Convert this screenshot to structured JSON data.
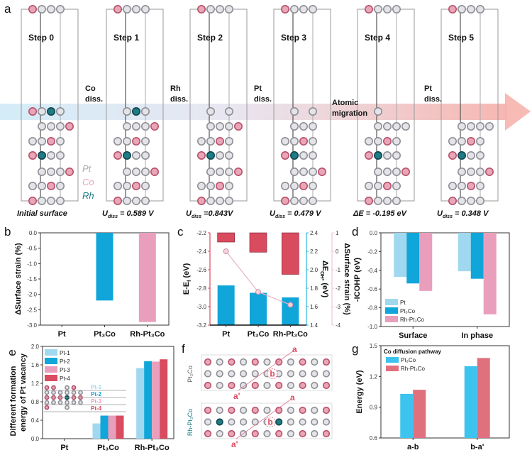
{
  "panel_labels": {
    "a": "a",
    "b": "b",
    "c": "c",
    "d": "d",
    "e": "e",
    "f": "f",
    "g": "g"
  },
  "panel_a": {
    "steps": [
      {
        "label": "Step 0",
        "caption": {
          "text": "Initial surface"
        },
        "rows": [
          "CPPP_",
          "CPRP_",
          "_PPPC",
          "PPCP_",
          "CRPP_",
          "_PPPC",
          "PPCP_",
          "CPPP_"
        ]
      },
      {
        "label": "Step 1",
        "caption": {
          "main": "U",
          "sub": "diss",
          "value": " = 0.589 V"
        },
        "rows": [
          "CPPP_",
          "_PRP_",
          "_PPPC",
          "PPCP_",
          "CRPP_",
          "_PPPC",
          "PPCP_",
          "CPPP_"
        ]
      },
      {
        "label": "Step 2",
        "caption": {
          "main": "U",
          "sub": "diss",
          "value": " =0.843V"
        },
        "rows": [
          "CPPP_",
          "_P_P_",
          "_PPPC",
          "PPCP_",
          "CRPP_",
          "_PPPC",
          "PPCP_",
          "CPPP_"
        ]
      },
      {
        "label": "Step 3",
        "caption": {
          "main": "U",
          "sub": "diss",
          "value": " = 0.479 V"
        },
        "rows": [
          "CPPP_",
          "_P_P_",
          "_PPP_",
          "PPCP_",
          "CRPP_",
          "_PPPC",
          "PPCP_",
          "CPPP_"
        ]
      },
      {
        "label": "Step 4",
        "caption": {
          "main": "ΔE",
          "sub": "",
          "value": " = -0.195 eV"
        },
        "rows": [
          "CPPP_",
          "_P___",
          "_PPPP",
          "PPCP_",
          "CRPP_",
          "_PPPC",
          "PPCP_",
          "CPPP_"
        ]
      },
      {
        "label": "Step 5",
        "caption": {
          "main": "U",
          "sub": "diss",
          "value": " = 0.348 V"
        },
        "rows": [
          "CPPP_",
          "_____",
          "_PPPP",
          "PPCP_",
          "CRPP_",
          "_PPPC",
          "PPCP_",
          "CPPP_"
        ]
      }
    ],
    "transitions": [
      [
        "Co",
        "diss."
      ],
      [
        "Rh",
        "diss."
      ],
      [
        "Pt",
        "diss."
      ],
      [
        "Atomic",
        "migration"
      ],
      [
        "Pt",
        "diss."
      ]
    ],
    "legend": [
      "Pt",
      "Co",
      "Rh"
    ]
  },
  "colors": {
    "Pt_fill": "#e4e4e8",
    "Pt_ring": "#8e8e96",
    "Co_fill": "#e8a6b6",
    "Co_ring": "#b8506c",
    "Rh_fill": "#1f7c86",
    "Rh_ring": "#10454b",
    "light_blue": "#9fd8ef",
    "blue": "#10a6d9",
    "pink": "#e99fbc",
    "red": "#d94b5f",
    "strain_line": "#e8b3c6"
  },
  "chart_data": [
    {
      "id": "b",
      "type": "bar",
      "title": "",
      "xlabel": "",
      "ylabel": "ΔSurface strain (%)",
      "categories": [
        "Pt",
        "Pt₃Co",
        "Rh-Pt₃Co"
      ],
      "values": [
        0,
        -2.2,
        -2.9
      ],
      "ylim": [
        -3.0,
        0.0
      ],
      "yticks": [
        "0.0",
        "-0.5",
        "-1.0",
        "-1.5",
        "-2.0",
        "-2.5",
        "-3.0"
      ],
      "bar_colors": [
        "#10a6d9",
        "#10a6d9",
        "#e99fbc"
      ]
    },
    {
      "id": "c",
      "type": "bar",
      "categories": [
        "Pt",
        "Pt₃Co",
        "Rh-Pt₃Co"
      ],
      "series": [
        {
          "name": "E-Ef",
          "axis": "left",
          "values": [
            -2.3,
            -2.41,
            -2.65
          ],
          "color": "#d94b5f"
        },
        {
          "name": "ΔE_OH*",
          "axis": "right",
          "values": [
            1.83,
            1.75,
            1.7
          ],
          "color": "#10a6d9"
        },
        {
          "name": "ΔSurface strain",
          "axis": "right2",
          "type": "line",
          "values": [
            0,
            -2.2,
            -2.9
          ],
          "color": "#e8b3c6"
        }
      ],
      "ylabel_left": {
        "main": "E-E",
        "sub": "f",
        "suffix": " (eV)"
      },
      "ylabel_right": {
        "main": "ΔE",
        "sub": "OH*",
        "suffix": " (eV)"
      },
      "ylabel_right2": "ΔSurface strain (%)",
      "ylim_left": [
        -3.2,
        -2.2
      ],
      "yticks_left": [
        "-2.2",
        "-2.4",
        "-2.6",
        "-2.8",
        "-3.0",
        "-3.2"
      ],
      "ylim_right": [
        1.4,
        2.4
      ],
      "yticks_right": [
        "2.4",
        "2.2",
        "2.0",
        "1.8",
        "1.6",
        "1.4"
      ],
      "ylim_right2": [
        -4,
        1
      ],
      "yticks_right2": [
        "1",
        "0",
        "-1",
        "-2",
        "-3",
        "-4"
      ]
    },
    {
      "id": "d",
      "type": "bar",
      "ylabel": "-ICOHP (eV)",
      "categories": [
        "Surface",
        "In phase"
      ],
      "series": [
        {
          "name": "Pt",
          "values": [
            -0.47,
            -0.41
          ],
          "color": "#9fd8ef"
        },
        {
          "name": "Pt₃Co",
          "values": [
            -0.54,
            -0.49
          ],
          "color": "#10a6d9"
        },
        {
          "name": "Rh-Pt₃Co",
          "values": [
            -0.62,
            -0.87
          ],
          "color": "#e99fbc"
        }
      ],
      "ylim": [
        -1.0,
        0.0
      ],
      "yticks": [
        "0.0",
        "-0.2",
        "-0.4",
        "-0.6",
        "-0.8",
        "-1.0"
      ],
      "legend": "bottom-left"
    },
    {
      "id": "e",
      "type": "bar",
      "ylabel": [
        "Different formation",
        "energy of Pt vacancy"
      ],
      "categories": [
        "Pt",
        "Pt₃Co",
        "Rh-Pt₃Co"
      ],
      "series": [
        {
          "name": "Pt-1",
          "values": [
            0,
            0.33,
            1.53
          ],
          "color": "#9fd8ef"
        },
        {
          "name": "Pt-2",
          "values": [
            0,
            0.5,
            1.68
          ],
          "color": "#10a6d9"
        },
        {
          "name": "Pt-3",
          "values": [
            0,
            0.5,
            1.67
          ],
          "color": "#e99fbc"
        },
        {
          "name": "Pt-4",
          "values": [
            0,
            0.5,
            1.72
          ],
          "color": "#d94b5f"
        }
      ],
      "ylim": [
        0.0,
        2.0
      ],
      "yticks": [
        "2.0",
        "1.6",
        "1.2",
        "0.8",
        "0.4",
        "0.0"
      ],
      "legend": "top-left",
      "inset_labels": [
        "Pt-1",
        "Pt-2",
        "Pt-3",
        "Pt-4"
      ]
    },
    {
      "id": "g",
      "type": "bar",
      "ylabel": "Energy (eV)",
      "categories": [
        "a-b",
        "b-a'"
      ],
      "series": [
        {
          "name": "Pt₃Co",
          "values": [
            1.03,
            1.3
          ],
          "color": "#3cc3ee"
        },
        {
          "name": "Rh-Pt₃Co",
          "values": [
            1.07,
            1.38
          ],
          "color": "#e0707e"
        }
      ],
      "legend_title": "Co diffusion pathway",
      "ylim": [
        0.6,
        1.5
      ],
      "yticks": [
        "1.5",
        "1.2",
        "0.9",
        "0.6"
      ],
      "legend": "top-left"
    }
  ],
  "panel_f": {
    "structures": [
      {
        "name": "Pt₃Co",
        "rows": [
          "CPCPCPCPCPC",
          "PPPPPPPPPPP",
          "CPCPCPCPCPC"
        ]
      },
      {
        "name": "Rh-Pt₃Co",
        "rows": [
          "CPCPCPCPCPC",
          "PRPPPPRPPPP",
          "CPCPCPCPCPC"
        ]
      }
    ],
    "site_labels": {
      "a": "a",
      "b": "b",
      "a_prime": "a'"
    }
  }
}
